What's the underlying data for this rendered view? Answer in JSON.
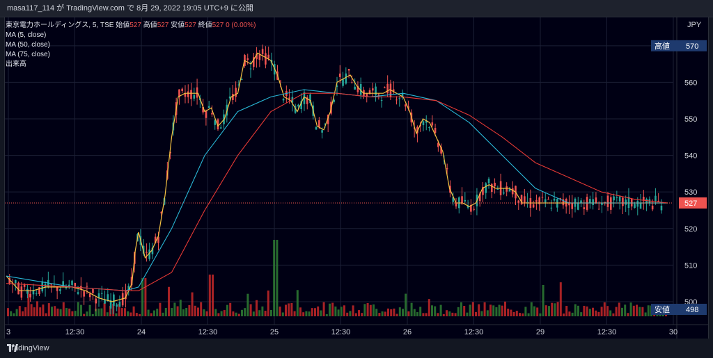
{
  "header": {
    "caption": "masa117_114 が TradingView.com で 8月 29, 2022 19:05 UTC+9 に公開"
  },
  "legend": {
    "symbol": "東京電力ホールディングス, 5, TSE",
    "open_label": "始値",
    "open": "527",
    "high_label": "高値",
    "high": "527",
    "low_label": "安値",
    "low": "527",
    "close_label": "終値",
    "close": "527",
    "change": "0 (0.00%)",
    "ma5": "MA (5, close)",
    "ma50": "MA (50, close)",
    "ma75": "MA (75, close)",
    "volume": "出来高"
  },
  "footer": {
    "brand": "TradingView"
  },
  "colors": {
    "up": "#26a69a",
    "down": "#ef5350",
    "ma5": "#f5c242",
    "ma50": "#29b6d6",
    "ma75": "#e53935",
    "vol_up": "#2e7d32",
    "vol_down": "#c62828",
    "label_bg": "#1e3a6e"
  },
  "chart_data": {
    "type": "line",
    "currency": "JPY",
    "y_ticks": [
      500,
      510,
      520,
      530,
      540,
      550,
      560,
      570
    ],
    "x_ticks": [
      "3",
      "12:30",
      "24",
      "12:30",
      "25",
      "12:30",
      "26",
      "12:30",
      "29",
      "12:30",
      "30"
    ],
    "ylim": [
      496,
      577
    ],
    "markers": [
      {
        "label": "高値",
        "value": 570
      },
      {
        "label": "安値",
        "value": 498
      },
      {
        "label": "",
        "value": 527,
        "current": true
      }
    ],
    "series": [
      {
        "name": "MA (5, close)",
        "t": [
          0,
          2,
          4,
          6,
          8,
          10,
          12,
          14,
          16,
          18,
          19,
          19.5,
          20,
          21,
          22,
          23,
          24,
          25,
          26,
          27,
          28,
          29,
          30,
          31,
          32,
          33,
          34,
          35,
          36,
          37,
          38,
          39,
          40,
          41,
          42,
          43,
          44,
          45,
          46,
          47,
          48,
          49,
          50,
          51,
          52,
          53,
          54,
          55,
          56,
          57,
          58,
          59,
          60,
          61,
          62,
          63,
          64,
          65,
          66,
          67,
          68,
          69,
          70,
          71,
          72,
          73,
          74,
          75,
          76,
          77,
          78,
          79,
          80,
          81,
          82,
          83,
          84,
          85,
          86,
          87,
          88,
          89,
          90,
          91,
          92,
          93,
          94,
          95,
          96,
          97,
          98,
          99,
          100
        ],
        "values": [
          507,
          503,
          503,
          504,
          504,
          504,
          503,
          501,
          500,
          501,
          505,
          514,
          519,
          512,
          514,
          518,
          529,
          545,
          556,
          557,
          557,
          557,
          552,
          553,
          548,
          550,
          556,
          557,
          566,
          565,
          568,
          567,
          566,
          562,
          556,
          555,
          552,
          556,
          555,
          548,
          547,
          552,
          560,
          561,
          562,
          559,
          557,
          557,
          557,
          557,
          558,
          557,
          556,
          552,
          546,
          550,
          549,
          545,
          541,
          531,
          527,
          527,
          526,
          527,
          531,
          532,
          531,
          531,
          531,
          530,
          527,
          527,
          527,
          527,
          527,
          527,
          527,
          527,
          527,
          527,
          527,
          527,
          527,
          527,
          527,
          527,
          527,
          527,
          527,
          527,
          527,
          527,
          527
        ]
      },
      {
        "name": "MA (50, close)",
        "t": [
          0,
          10,
          18,
          20,
          25,
          30,
          35,
          40,
          45,
          50,
          55,
          60,
          65,
          70,
          75,
          80,
          85,
          90,
          95,
          100
        ],
        "values": [
          507,
          504,
          503,
          504,
          520,
          540,
          552,
          556,
          558,
          557,
          556,
          557,
          555,
          549,
          540,
          531,
          527,
          527,
          527,
          527
        ]
      },
      {
        "name": "MA (75, close)",
        "t": [
          0,
          10,
          18,
          20,
          25,
          30,
          35,
          40,
          45,
          50,
          55,
          60,
          65,
          70,
          75,
          80,
          85,
          90,
          95,
          100
        ],
        "values": [
          505,
          504,
          503,
          503,
          508,
          525,
          540,
          552,
          557,
          557,
          556,
          556,
          555,
          551,
          545,
          538,
          534,
          530,
          528,
          527
        ]
      }
    ]
  }
}
